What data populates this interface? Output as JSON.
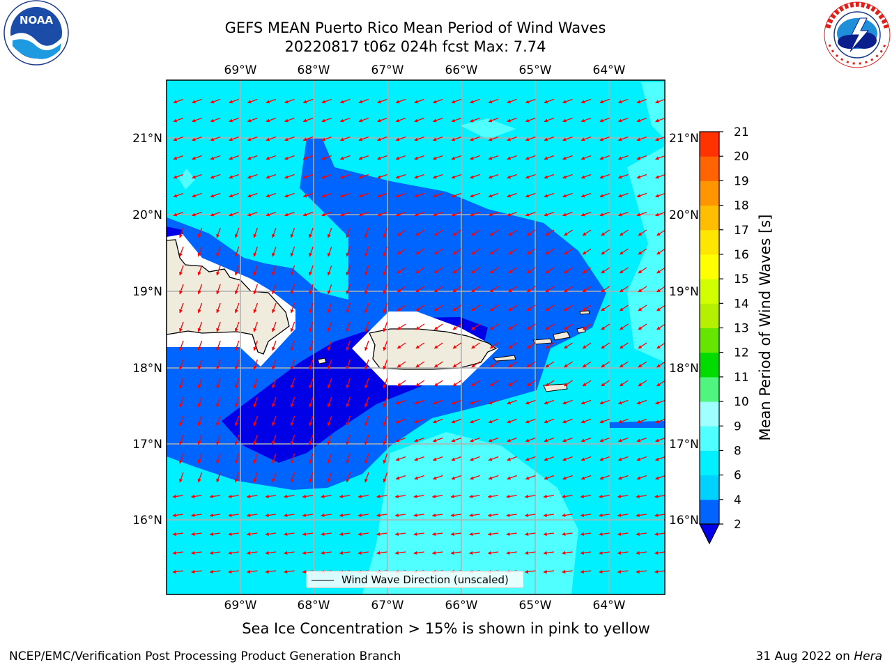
{
  "header": {
    "title_line1": "GEFS MEAN Puerto Rico Mean Period of Wind Waves",
    "title_line2": "20220817 t06z 024h fcst   Max: 7.74"
  },
  "logos": {
    "left": {
      "text": "NOAA",
      "ring_text": "NATIONAL OCEANIC AND ATMOSPHERIC ADMINISTRATION · U.S. DEPARTMENT OF COMMERCE"
    },
    "right": {
      "ring_text": "NATIONAL WEATHER SERVICE"
    }
  },
  "map": {
    "lon_labels": [
      "69°W",
      "68°W",
      "67°W",
      "66°W",
      "65°W",
      "64°W"
    ],
    "lat_labels": [
      "21°N",
      "20°N",
      "19°N",
      "18°N",
      "17°N",
      "16°N"
    ],
    "ocean_color": "#00f0ff",
    "land_color": "#efebdd",
    "arrow_color": "#ff0000"
  },
  "legend": {
    "label": "Wind Wave Direction (unscaled)"
  },
  "colorbar": {
    "label": "Mean Period of Wind Waves [s]",
    "ticks": [
      "2",
      "4",
      "6",
      "8",
      "9",
      "10",
      "11",
      "12",
      "13",
      "14",
      "15",
      "16",
      "17",
      "18",
      "19",
      "20",
      "21"
    ],
    "colors": [
      "#0064ff",
      "#00d2ff",
      "#00f0ff",
      "#50ffff",
      "#a0ffff",
      "#50f580",
      "#00dc00",
      "#64e600",
      "#b4f000",
      "#d2ff00",
      "#ffff00",
      "#ffe600",
      "#ffbe00",
      "#ff9600",
      "#ff6400",
      "#ff3200",
      "#ff0000"
    ],
    "under_color": "#0000e6"
  },
  "notes": {
    "sea_ice": "Sea Ice Concentration > 15% is shown in pink to yellow",
    "footer_left": "NCEP/EMC/Verification Post Processing Product Generation Branch",
    "footer_right_prefix": "31 Aug 2022 on ",
    "footer_right_host": "Hera"
  }
}
